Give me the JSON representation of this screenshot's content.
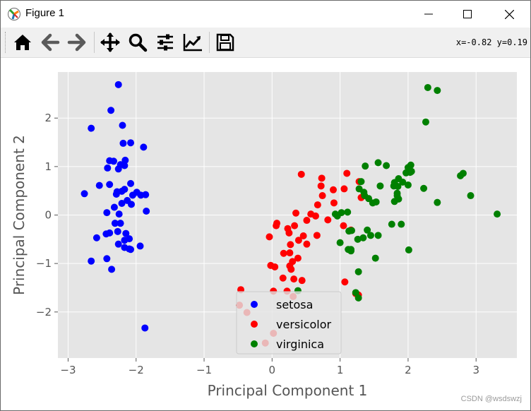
{
  "window": {
    "title": "Figure 1"
  },
  "toolbar": {
    "buttons": [
      {
        "name": "home-icon"
      },
      {
        "name": "back-arrow-icon"
      },
      {
        "name": "forward-arrow-icon"
      },
      {
        "name": "pan-icon"
      },
      {
        "name": "zoom-icon"
      },
      {
        "name": "configure-subplots-icon"
      },
      {
        "name": "edit-axis-icon"
      },
      {
        "name": "save-icon"
      }
    ],
    "coords": "x=-0.82 y=0.19"
  },
  "watermark": "CSDN @wsdswzj",
  "chart_data": {
    "type": "scatter",
    "xlabel": "Principal Component 1",
    "ylabel": "Principal Component 2",
    "xlim": [
      -3.15,
      3.6
    ],
    "ylim": [
      -2.95,
      2.95
    ],
    "x_ticks": [
      -3,
      -2,
      -1,
      0,
      1,
      2,
      3
    ],
    "y_ticks": [
      -2,
      -1,
      0,
      1,
      2
    ],
    "grid": true,
    "legend_position": "lower center",
    "series": [
      {
        "name": "setosa",
        "color": "#0000ff",
        "points": [
          [
            -2.26,
            2.69
          ],
          [
            -2.37,
            2.16
          ],
          [
            -2.66,
            1.79
          ],
          [
            -2.2,
            1.85
          ],
          [
            -2.19,
            1.48
          ],
          [
            -2.08,
            1.49
          ],
          [
            -1.89,
            1.4
          ],
          [
            -2.16,
            1.13
          ],
          [
            -2.39,
            1.12
          ],
          [
            -2.33,
            1.11
          ],
          [
            -2.23,
            1.04
          ],
          [
            -2.17,
            1.02
          ],
          [
            -2.26,
            0.95
          ],
          [
            -2.42,
            0.97
          ],
          [
            -2.54,
            0.61
          ],
          [
            -2.39,
            0.63
          ],
          [
            -2.08,
            0.65
          ],
          [
            -2.17,
            0.53
          ],
          [
            -2.21,
            0.49
          ],
          [
            -2.28,
            0.48
          ],
          [
            -2.29,
            0.43
          ],
          [
            -1.99,
            0.47
          ],
          [
            -2.05,
            0.41
          ],
          [
            -1.93,
            0.41
          ],
          [
            -1.86,
            0.42
          ],
          [
            -2.76,
            0.44
          ],
          [
            -2.13,
            0.3
          ],
          [
            -2.21,
            0.24
          ],
          [
            -2.32,
            0.16
          ],
          [
            -2.07,
            0.22
          ],
          [
            -2.43,
            0.05
          ],
          [
            -2.25,
            0.02
          ],
          [
            -1.85,
            0.08
          ],
          [
            -2.23,
            -0.17
          ],
          [
            -2.31,
            -0.17
          ],
          [
            -2.39,
            -0.37
          ],
          [
            -2.44,
            -0.39
          ],
          [
            -2.27,
            -0.34
          ],
          [
            -2.15,
            -0.38
          ],
          [
            -2.58,
            -0.47
          ],
          [
            -2.17,
            -0.52
          ],
          [
            -2.1,
            -0.49
          ],
          [
            -2.26,
            -0.6
          ],
          [
            -2.17,
            -0.67
          ],
          [
            -2.08,
            -0.71
          ],
          [
            -2.1,
            -0.7
          ],
          [
            -1.94,
            -0.64
          ],
          [
            -2.43,
            -0.9
          ],
          [
            -2.66,
            -0.95
          ],
          [
            -2.36,
            -1.12
          ],
          [
            -1.87,
            -2.33
          ]
        ]
      },
      {
        "name": "versicolor",
        "color": "#ff0000",
        "points": [
          [
            0.43,
            0.84
          ],
          [
            1.1,
            0.86
          ],
          [
            0.73,
            0.76
          ],
          [
            0.72,
            0.6
          ],
          [
            0.9,
            0.52
          ],
          [
            1.06,
            0.54
          ],
          [
            0.74,
            0.4
          ],
          [
            1.31,
            0.36
          ],
          [
            1.28,
            0.69
          ],
          [
            0.91,
            0.25
          ],
          [
            0.67,
            0.21
          ],
          [
            0.35,
            0.04
          ],
          [
            0.57,
            0.02
          ],
          [
            0.64,
            -0.02
          ],
          [
            0.51,
            -0.11
          ],
          [
            0.07,
            -0.17
          ],
          [
            0.06,
            -0.22
          ],
          [
            0.33,
            -0.22
          ],
          [
            0.82,
            -0.1
          ],
          [
            1.05,
            -0.22
          ],
          [
            1.16,
            -0.31
          ],
          [
            0.23,
            -0.28
          ],
          [
            0.25,
            -0.37
          ],
          [
            0.46,
            -0.43
          ],
          [
            0.66,
            -0.42
          ],
          [
            -0.04,
            -0.45
          ],
          [
            0.39,
            -0.52
          ],
          [
            0.51,
            -0.6
          ],
          [
            0.27,
            -0.61
          ],
          [
            0.26,
            -0.78
          ],
          [
            0.17,
            -0.79
          ],
          [
            0.38,
            -0.89
          ],
          [
            0.3,
            -0.96
          ],
          [
            0.28,
            -1.12
          ],
          [
            0.26,
            -1.05
          ],
          [
            -0.02,
            -1.04
          ],
          [
            0.04,
            -1.07
          ],
          [
            0.16,
            -1.3
          ],
          [
            0.44,
            -1.35
          ],
          [
            0.32,
            -1.32
          ],
          [
            1.07,
            -1.38
          ],
          [
            0.02,
            -1.57
          ],
          [
            0.22,
            -1.57
          ],
          [
            -0.46,
            -1.54
          ],
          [
            -0.48,
            -1.86
          ],
          [
            1.23,
            -1.62
          ],
          [
            1.27,
            -1.65
          ],
          [
            0.31,
            -1.68
          ],
          [
            -0.37,
            -2.01
          ],
          [
            0.02,
            -2.44
          ],
          [
            -0.1,
            -2.64
          ]
        ]
      },
      {
        "name": "virginica",
        "color": "#008000",
        "points": [
          [
            2.29,
            2.63
          ],
          [
            2.43,
            2.57
          ],
          [
            2.26,
            1.92
          ],
          [
            2.04,
            1.03
          ],
          [
            2.0,
            0.98
          ],
          [
            1.56,
            1.08
          ],
          [
            1.68,
            1.02
          ],
          [
            1.37,
            1.01
          ],
          [
            2.05,
            0.9
          ],
          [
            1.97,
            0.87
          ],
          [
            2.03,
            0.88
          ],
          [
            1.92,
            0.68
          ],
          [
            2.77,
            0.81
          ],
          [
            2.81,
            0.86
          ],
          [
            2.92,
            0.4
          ],
          [
            3.31,
            0.02
          ],
          [
            2.23,
            0.55
          ],
          [
            2.43,
            0.26
          ],
          [
            2.0,
            0.62
          ],
          [
            1.79,
            0.6
          ],
          [
            1.59,
            0.6
          ],
          [
            1.8,
            0.67
          ],
          [
            1.85,
            0.59
          ],
          [
            1.84,
            0.45
          ],
          [
            1.84,
            0.4
          ],
          [
            1.86,
            0.33
          ],
          [
            1.8,
            0.28
          ],
          [
            1.48,
            0.25
          ],
          [
            1.53,
            0.27
          ],
          [
            1.36,
            0.4
          ],
          [
            1.35,
            0.47
          ],
          [
            1.42,
            0.34
          ],
          [
            1.28,
            0.54
          ],
          [
            1.31,
            0.69
          ],
          [
            1.11,
            0.06
          ],
          [
            1.02,
            0.05
          ],
          [
            0.93,
            0.02
          ],
          [
            0.96,
            -0.02
          ],
          [
            1.13,
            -0.33
          ],
          [
            1.17,
            -0.32
          ],
          [
            1.34,
            -0.47
          ],
          [
            1.56,
            -0.42
          ],
          [
            1.76,
            -0.19
          ],
          [
            1.9,
            -0.19
          ],
          [
            1.45,
            -0.42
          ],
          [
            1.12,
            -0.71
          ],
          [
            1.0,
            -0.57
          ],
          [
            1.52,
            -0.89
          ],
          [
            1.16,
            -0.71
          ],
          [
            2.01,
            -0.72
          ],
          [
            1.16,
            -0.74
          ],
          [
            1.27,
            -1.17
          ],
          [
            1.23,
            -1.6
          ],
          [
            1.27,
            -1.71
          ],
          [
            0.38,
            -1.56
          ],
          [
            1.26,
            -0.5
          ],
          [
            1.4,
            -0.31
          ],
          [
            1.86,
            0.75
          ]
        ]
      }
    ]
  }
}
